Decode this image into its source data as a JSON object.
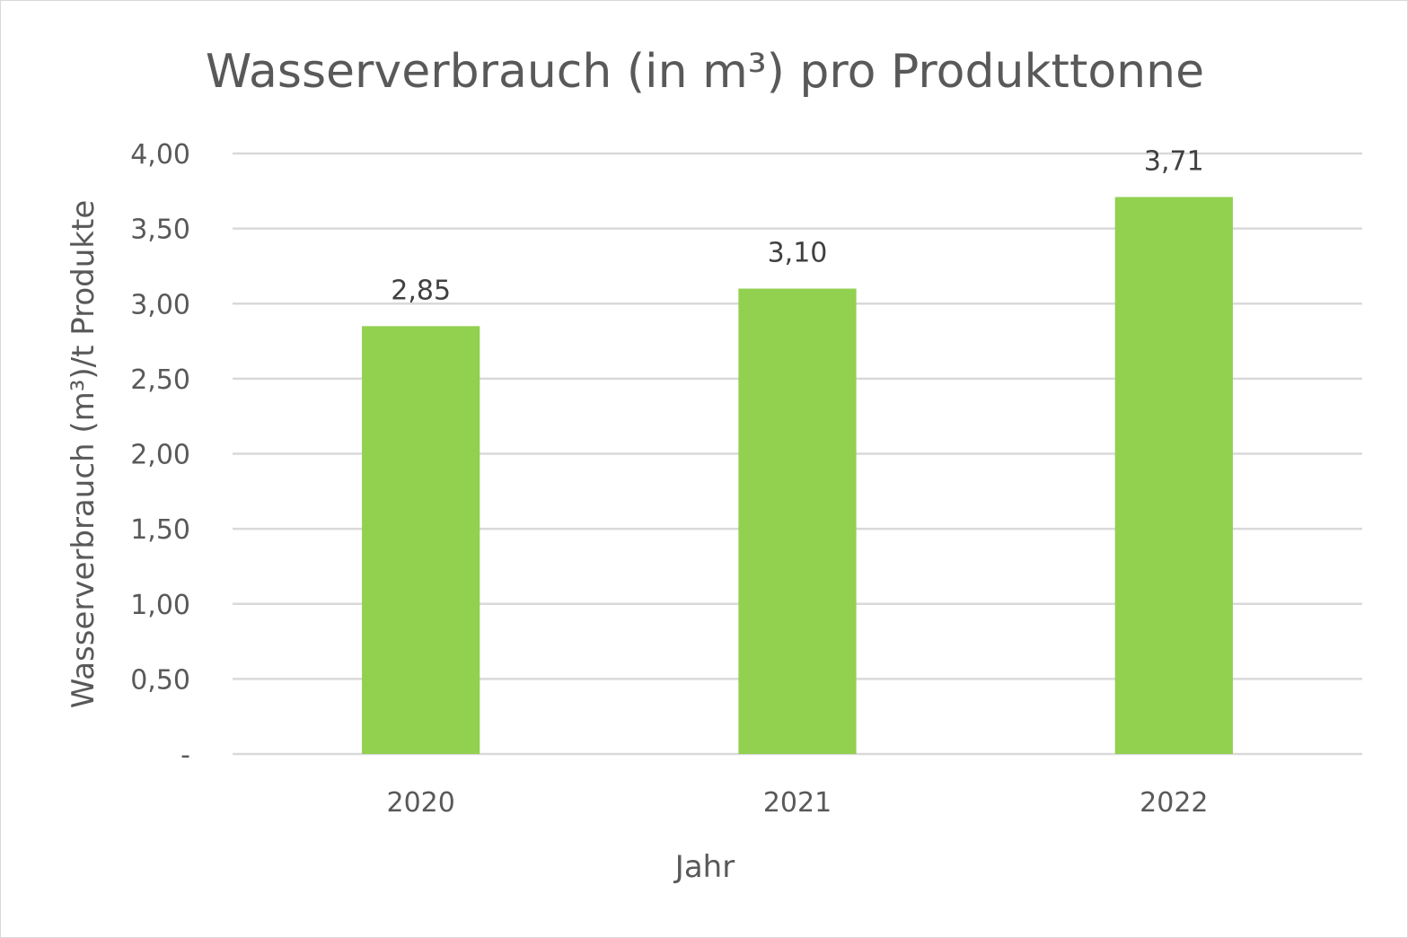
{
  "chart_data": {
    "type": "bar",
    "title": "Wasserverbrauch (in m³) pro Produkttonne",
    "xlabel": "Jahr",
    "ylabel": "Wasserverbrauch (m³)/t Produkte",
    "categories": [
      "2020",
      "2021",
      "2022"
    ],
    "values": [
      2.85,
      3.1,
      3.71
    ],
    "data_labels": [
      "2,85",
      "3,10",
      "3,71"
    ],
    "ylim": [
      0,
      4
    ],
    "yticks": [
      0,
      0.5,
      1,
      1.5,
      2,
      2.5,
      3,
      3.5,
      4
    ],
    "ytick_labels": [
      "-",
      "0,50",
      "1,00",
      "1,50",
      "2,00",
      "2,50",
      "3,00",
      "3,50",
      "4,00"
    ],
    "grid": true,
    "legend": "none",
    "colors": {
      "bar": "#92d050",
      "grid": "#d9d9d9",
      "text": "#595959"
    }
  }
}
